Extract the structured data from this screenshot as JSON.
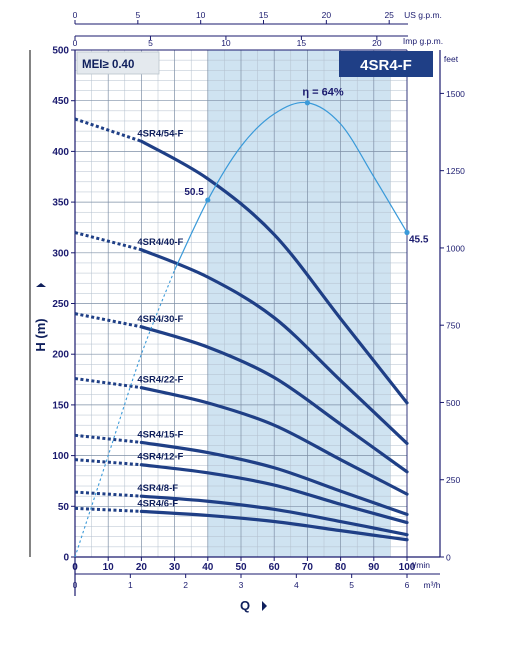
{
  "chart_data": {
    "type": "line",
    "model": "4SR4-F",
    "badge": "MEI≥ 0.40",
    "x_lmin": {
      "label": "l/min",
      "ticks": [
        0,
        10,
        20,
        30,
        40,
        50,
        60,
        70,
        80,
        90,
        100
      ],
      "lim": [
        0,
        100
      ]
    },
    "x_m3h": {
      "label": "m³/h",
      "ticks": [
        0,
        1,
        2,
        3,
        4,
        5,
        6
      ]
    },
    "x_usgpm": {
      "label": "US g.p.m.",
      "ticks": [
        0,
        5,
        10,
        15,
        20,
        25
      ]
    },
    "x_impgpm": {
      "label": "Imp g.p.m.",
      "ticks": [
        0,
        5,
        10,
        15,
        20
      ]
    },
    "y_m": {
      "label": "H (m)",
      "ticks": [
        0,
        50,
        100,
        150,
        200,
        250,
        300,
        350,
        400,
        450,
        500
      ],
      "lim": [
        0,
        500
      ]
    },
    "y_feet": {
      "label": "feet",
      "ticks": [
        0,
        250,
        500,
        750,
        1000,
        1250,
        1500
      ]
    },
    "xlabel": "Q",
    "ylabel": "H (m)",
    "grid": true,
    "shaded_range": [
      40,
      95
    ],
    "series": [
      {
        "name": "4SR4/54-F",
        "dashed": {
          "x": [
            0,
            20
          ],
          "y": [
            432,
            410
          ]
        },
        "x": [
          20,
          40,
          60,
          80,
          100
        ],
        "y": [
          410,
          373,
          318,
          235,
          152
        ]
      },
      {
        "name": "4SR4/40-F",
        "dashed": {
          "x": [
            0,
            20
          ],
          "y": [
            320,
            303
          ]
        },
        "x": [
          20,
          40,
          60,
          80,
          100
        ],
        "y": [
          303,
          276,
          236,
          174,
          112
        ]
      },
      {
        "name": "4SR4/30-F",
        "dashed": {
          "x": [
            0,
            20
          ],
          "y": [
            240,
            227
          ]
        },
        "x": [
          20,
          40,
          60,
          80,
          100
        ],
        "y": [
          227,
          207,
          177,
          131,
          84
        ]
      },
      {
        "name": "4SR4/22-F",
        "dashed": {
          "x": [
            0,
            20
          ],
          "y": [
            176,
            167
          ]
        },
        "x": [
          20,
          40,
          60,
          80,
          100
        ],
        "y": [
          167,
          152,
          130,
          96,
          62
        ]
      },
      {
        "name": "4SR4/15-F",
        "dashed": {
          "x": [
            0,
            20
          ],
          "y": [
            120,
            113
          ]
        },
        "x": [
          20,
          40,
          60,
          80,
          100
        ],
        "y": [
          113,
          103,
          88,
          65,
          42
        ]
      },
      {
        "name": "4SR4/12-F",
        "dashed": {
          "x": [
            0,
            20
          ],
          "y": [
            96,
            91
          ]
        },
        "x": [
          20,
          40,
          60,
          80,
          100
        ],
        "y": [
          91,
          83,
          71,
          52,
          34
        ]
      },
      {
        "name": "4SR4/8-F",
        "dashed": {
          "x": [
            0,
            20
          ],
          "y": [
            64,
            60
          ]
        },
        "x": [
          20,
          40,
          60,
          80,
          100
        ],
        "y": [
          60,
          55,
          47,
          35,
          22
        ]
      },
      {
        "name": "4SR4/6-F",
        "dashed": {
          "x": [
            0,
            20
          ],
          "y": [
            48,
            45
          ]
        },
        "x": [
          20,
          40,
          60,
          80,
          100
        ],
        "y": [
          45,
          41,
          35,
          26,
          17
        ]
      }
    ],
    "efficiency": {
      "x": [
        0,
        10,
        20,
        30,
        40,
        50,
        60,
        70,
        80,
        90,
        100
      ],
      "y": [
        0,
        100,
        200,
        283,
        352,
        405,
        437,
        448,
        427,
        375,
        320
      ],
      "dashed_until": 30,
      "markers": [
        {
          "x": 40,
          "y": 352,
          "label": "50.5"
        },
        {
          "x": 70,
          "y": 448,
          "label": "η = 64%"
        },
        {
          "x": 100,
          "y": 320,
          "label": "45.5"
        }
      ]
    }
  }
}
